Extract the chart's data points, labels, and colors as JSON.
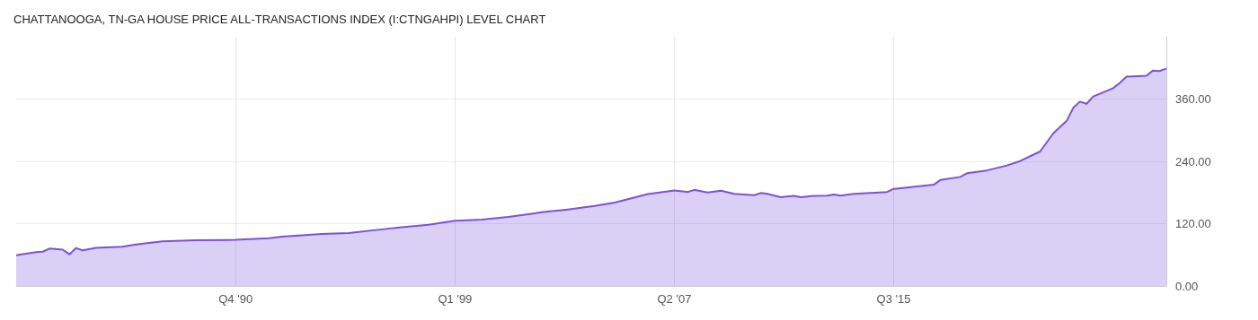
{
  "chart_data": {
    "type": "area",
    "title": "CHATTANOOGA, TN-GA HOUSE PRICE ALL-TRANSACTIONS INDEX (I:CTNGAHPI) LEVEL CHART",
    "x": [
      "1982-07",
      "1983-04",
      "1983-07",
      "1983-10",
      "1984-04",
      "1984-07",
      "1984-10",
      "1985-01",
      "1985-07",
      "1986-07",
      "1987-01",
      "1987-07",
      "1988-01",
      "1989-04",
      "1990-10",
      "1992-01",
      "1992-07",
      "1994-01",
      "1995-01",
      "1996-04",
      "1997-01",
      "1998-01",
      "1999-01",
      "2000-01",
      "2001-01",
      "2002-01",
      "2002-04",
      "2003-04",
      "2004-04",
      "2005-01",
      "2005-07",
      "2006-04",
      "2007-04",
      "2007-10",
      "2008-01",
      "2008-07",
      "2009-01",
      "2009-07",
      "2010-04",
      "2010-07",
      "2010-10",
      "2011-04",
      "2011-10",
      "2012-01",
      "2012-07",
      "2013-01",
      "2013-04",
      "2013-07",
      "2014-01",
      "2015-04",
      "2015-07",
      "2016-01",
      "2017-01",
      "2017-04",
      "2018-01",
      "2018-04",
      "2019-01",
      "2019-10",
      "2020-04",
      "2021-01",
      "2021-07",
      "2022-01",
      "2022-04",
      "2022-07",
      "2022-10",
      "2023-01",
      "2023-10",
      "2024-01",
      "2024-04",
      "2025-01",
      "2025-04",
      "2025-07",
      "2025-10"
    ],
    "series": [
      {
        "color": "#7b52d9",
        "values": [
          59,
          65,
          66,
          72,
          70,
          61,
          73,
          68.5,
          73.5,
          75.6,
          80,
          82.7,
          86,
          88,
          88.8,
          92,
          94.8,
          100,
          102,
          109,
          113,
          118,
          125.5,
          127.6,
          133,
          139.7,
          141.9,
          147.4,
          154,
          160.6,
          167,
          177,
          184,
          181,
          185,
          180,
          183.6,
          177.5,
          174.8,
          179,
          177.5,
          171,
          173.7,
          171,
          173.7,
          174,
          176,
          174,
          177.5,
          181,
          187,
          189.6,
          195,
          204,
          210,
          217,
          222.5,
          232,
          240.5,
          259,
          294,
          318,
          343,
          355,
          351,
          365,
          381,
          391,
          403,
          405,
          415,
          414,
          419
        ]
      }
    ],
    "xlim": [
      "1982-07",
      "2025-10"
    ],
    "xticks": [
      {
        "value": "1990-10",
        "label": "Q4 '90"
      },
      {
        "value": "1999-01",
        "label": "Q1 '99"
      },
      {
        "value": "2007-04",
        "label": "Q2 '07"
      },
      {
        "value": "2015-07",
        "label": "Q3 '15"
      }
    ],
    "ylim": [
      0,
      480
    ],
    "yticks": [
      {
        "value": 0,
        "label": "0.00"
      },
      {
        "value": 120,
        "label": "120.00"
      },
      {
        "value": 240,
        "label": "240.00"
      },
      {
        "value": 360,
        "label": "360.00"
      }
    ],
    "grid": true
  }
}
